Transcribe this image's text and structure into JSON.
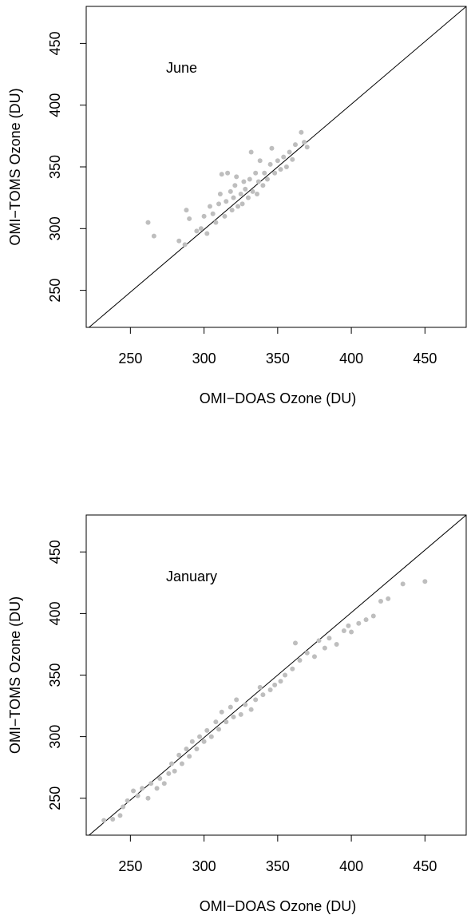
{
  "chart_data": [
    {
      "type": "scatter",
      "xlabel": "OMI−DOAS Ozone (DU)",
      "ylabel": "OMI−TOMS Ozone (DU)",
      "annotation": "June",
      "color": "#bebebe",
      "identity_line": true,
      "xlim": [
        220,
        478
      ],
      "ylim": [
        220,
        480
      ],
      "xticks": [
        250,
        300,
        350,
        400,
        450
      ],
      "yticks": [
        250,
        300,
        350,
        400,
        450
      ],
      "x": [
        262,
        266,
        283,
        287,
        288,
        290,
        295,
        298,
        300,
        302,
        304,
        306,
        308,
        310,
        311,
        312,
        314,
        315,
        316,
        318,
        319,
        320,
        321,
        322,
        323,
        325,
        326,
        327,
        328,
        330,
        331,
        332,
        333,
        335,
        336,
        337,
        338,
        340,
        341,
        343,
        345,
        346,
        348,
        350,
        352,
        354,
        356,
        358,
        360,
        362,
        366,
        368,
        370
      ],
      "values": [
        305,
        294,
        290,
        287,
        315,
        308,
        298,
        300,
        310,
        296,
        318,
        312,
        305,
        320,
        328,
        344,
        310,
        322,
        345,
        330,
        315,
        325,
        335,
        342,
        318,
        328,
        320,
        338,
        332,
        325,
        340,
        362,
        330,
        345,
        328,
        338,
        355,
        335,
        345,
        340,
        352,
        365,
        345,
        355,
        348,
        358,
        350,
        362,
        356,
        368,
        378,
        370,
        366
      ]
    },
    {
      "type": "scatter",
      "xlabel": "OMI−DOAS Ozone (DU)",
      "ylabel": "OMI−TOMS Ozone (DU)",
      "annotation": "January",
      "color": "#bebebe",
      "identity_line": true,
      "xlim": [
        220,
        478
      ],
      "ylim": [
        220,
        480
      ],
      "xticks": [
        250,
        300,
        350,
        400,
        450
      ],
      "yticks": [
        250,
        300,
        350,
        400,
        450
      ],
      "x": [
        232,
        238,
        243,
        245,
        248,
        252,
        255,
        258,
        262,
        264,
        268,
        270,
        273,
        276,
        278,
        280,
        283,
        285,
        288,
        290,
        292,
        295,
        297,
        300,
        302,
        305,
        308,
        310,
        312,
        315,
        318,
        320,
        322,
        325,
        328,
        332,
        335,
        338,
        340,
        345,
        348,
        352,
        355,
        360,
        362,
        365,
        370,
        375,
        378,
        382,
        385,
        390,
        395,
        398,
        400,
        405,
        410,
        415,
        420,
        425,
        435,
        450
      ],
      "values": [
        232,
        233,
        236,
        243,
        248,
        256,
        252,
        258,
        250,
        262,
        258,
        266,
        262,
        270,
        278,
        272,
        285,
        278,
        290,
        284,
        296,
        290,
        300,
        296,
        305,
        300,
        312,
        306,
        320,
        312,
        324,
        316,
        330,
        318,
        326,
        322,
        330,
        340,
        334,
        338,
        342,
        345,
        350,
        355,
        376,
        362,
        368,
        365,
        378,
        372,
        380,
        375,
        386,
        390,
        385,
        392,
        395,
        398,
        410,
        412,
        424,
        426
      ]
    }
  ]
}
